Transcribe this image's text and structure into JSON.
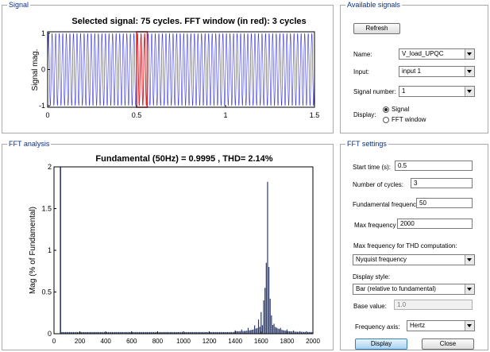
{
  "signal_panel": {
    "legend": "Signal",
    "title": "Selected signal: 75 cycles. FFT window (in red): 3 cycles",
    "ylabel": "Signal mag.",
    "x_ticks": [
      "0",
      "0.5",
      "1",
      "1.5"
    ],
    "y_ticks": [
      "1",
      "0",
      "-1"
    ],
    "fft_window_start": 0.5,
    "fft_window_cycles": 3,
    "total_cycles": 75,
    "total_time": 1.5,
    "signal_color": "#3333dd",
    "window_color": "#ee2222"
  },
  "fft_panel": {
    "legend": "FFT analysis",
    "title": "Fundamental (50Hz) = 0.9995 , THD= 2.14%",
    "ylabel": "Mag (% of Fundamental)",
    "x_ticks": [
      "0",
      "200",
      "400",
      "600",
      "800",
      "1000",
      "1200",
      "1400",
      "1600",
      "1800",
      "2000"
    ],
    "y_ticks": [
      "0",
      "0.5",
      "1",
      "1.5",
      "2"
    ],
    "bar_color": "#2c3a6a"
  },
  "chart_data": {
    "type": "bar",
    "title": "Fundamental (50Hz) = 0.9995 , THD= 2.14%",
    "xlabel": "",
    "ylabel": "Mag (% of Fundamental)",
    "xlim": [
      0,
      2000
    ],
    "ylim": [
      0,
      2
    ],
    "x": [
      50,
      1400,
      1450,
      1500,
      1550,
      1580,
      1600,
      1620,
      1630,
      1640,
      1650,
      1660,
      1670,
      1680,
      1700,
      1750,
      1800,
      1850,
      1900,
      1950,
      2000
    ],
    "values": [
      2.0,
      0.04,
      0.05,
      0.07,
      0.1,
      0.17,
      0.26,
      0.4,
      0.55,
      0.85,
      1.82,
      0.8,
      0.42,
      0.22,
      0.12,
      0.07,
      0.05,
      0.04,
      0.03,
      0.03,
      0.02
    ],
    "baseline_noise": 0.02,
    "grid": false
  },
  "available_signals": {
    "legend": "Available signals",
    "refresh_label": "Refresh",
    "name_label": "Name:",
    "name_value": "V_load_UPQC",
    "input_label": "Input:",
    "input_value": "input 1",
    "signal_number_label": "Signal number:",
    "signal_number_value": "1",
    "display_label": "Display:",
    "display_options": [
      "Signal",
      "FFT window"
    ],
    "display_selected": "Signal"
  },
  "fft_settings": {
    "legend": "FFT settings",
    "start_time_label": "Start time (s):",
    "start_time_value": "0.5",
    "num_cycles_label": "Number of cycles:",
    "num_cycles_value": "3",
    "fund_freq_label": "Fundamental frequency (Hz):",
    "fund_freq_value": "50",
    "max_freq_label": "Max frequency (Hz):",
    "max_freq_value": "2000",
    "thd_label": "Max frequency for THD computation:",
    "thd_value": "Nyquist frequency",
    "display_style_label": "Display style:",
    "display_style_value": "Bar (relative to fundamental)",
    "base_value_label": "Base value:",
    "base_value_value": "1.0",
    "freq_axis_label": "Frequency axis:",
    "freq_axis_value": "Hertz",
    "display_button": "Display",
    "close_button": "Close"
  }
}
